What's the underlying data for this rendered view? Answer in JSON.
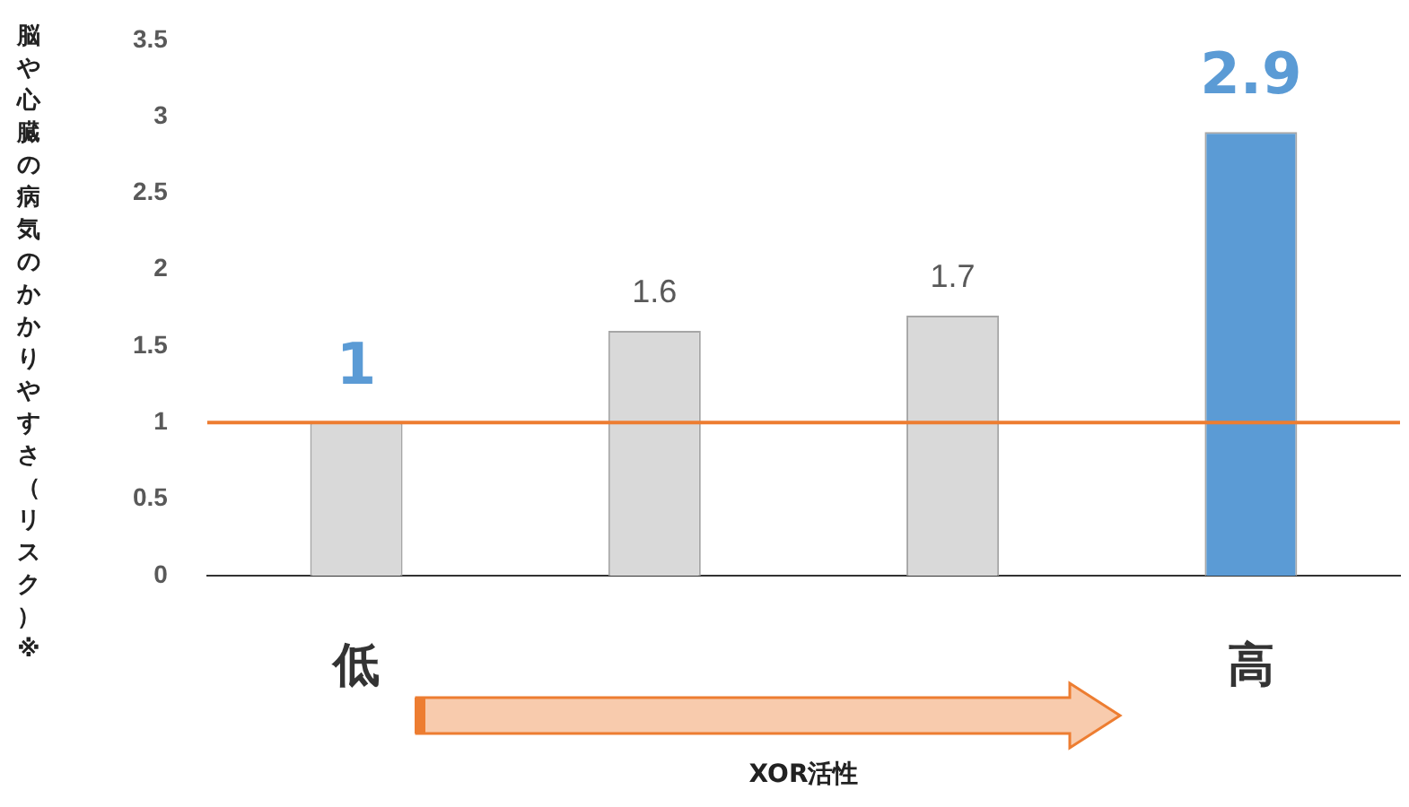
{
  "chart_data": {
    "type": "bar",
    "categories": [
      "低",
      null,
      null,
      "高"
    ],
    "values": [
      1,
      1.6,
      1.7,
      2.9
    ],
    "colors": [
      "#d9d9d9",
      "#d9d9d9",
      "#d9d9d9",
      "#5b9bd5"
    ],
    "xlabel": "XOR活性",
    "ylabel": "脳や心臓の病気のかかりやすさ（リスク）※",
    "ylim": [
      0,
      3.5
    ],
    "yticks": [
      0,
      0.5,
      1,
      1.5,
      2,
      2.5,
      3,
      3.5
    ],
    "ref_lines": [
      {
        "axis": "y",
        "value": 1,
        "color": "#ed7d31"
      }
    ],
    "data_labels": true,
    "grid": false,
    "legend": false
  }
}
